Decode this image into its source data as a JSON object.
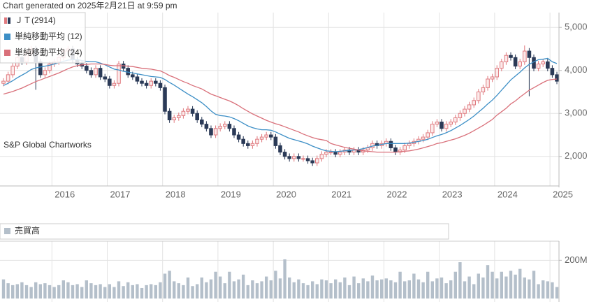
{
  "title": "Chart generated on 2025年2月21日 at 9:59 pm",
  "watermark": "S&P Global Chartworks",
  "chart_data": [
    {
      "type": "candlestick",
      "categories": [
        null,
        null,
        null,
        null,
        null,
        null,
        null,
        null,
        null,
        null,
        null,
        "2016",
        null,
        null,
        null,
        null,
        null,
        null,
        null,
        null,
        null,
        null,
        null,
        "2017",
        null,
        null,
        null,
        null,
        null,
        null,
        null,
        null,
        null,
        null,
        null,
        "2018",
        null,
        null,
        null,
        null,
        null,
        null,
        null,
        null,
        null,
        null,
        null,
        "2019",
        null,
        null,
        null,
        null,
        null,
        null,
        null,
        null,
        null,
        null,
        null,
        "2020",
        null,
        null,
        null,
        null,
        null,
        null,
        null,
        null,
        null,
        null,
        null,
        "2021",
        null,
        null,
        null,
        null,
        null,
        null,
        null,
        null,
        null,
        null,
        null,
        "2022",
        null,
        null,
        null,
        null,
        null,
        null,
        null,
        null,
        null,
        null,
        null,
        "2023",
        null,
        null,
        null,
        null,
        null,
        null,
        null,
        null,
        null,
        null,
        null,
        "2024",
        null,
        null,
        null,
        null,
        null,
        null,
        null,
        null,
        null,
        null,
        null,
        "2025",
        null
      ],
      "ylim": [
        1330,
        5280
      ],
      "yticks": [
        {
          "value": 2000,
          "label": "2,000"
        },
        {
          "value": 3000,
          "label": "3,000"
        },
        {
          "value": 4000,
          "label": "4,000"
        },
        {
          "value": 5000,
          "label": "5,000"
        }
      ],
      "grid": true,
      "series": [
        {
          "name": "ＪＴ(2914)",
          "color": "#e07a7f",
          "down_color": "#2b3a57",
          "open": [
            3700,
            3750,
            3900,
            4100,
            4300,
            4200,
            4400,
            4500,
            4200,
            3900,
            4000,
            4150,
            4200,
            4300,
            4450,
            4500,
            4250,
            4150,
            4100,
            4000,
            3900,
            4050,
            3850,
            3800,
            3650,
            3700,
            4150,
            4050,
            3900,
            3850,
            3750,
            3700,
            3650,
            3750,
            3700,
            3600,
            3050,
            2850,
            2900,
            2950,
            3050,
            3100,
            3000,
            2850,
            2750,
            2650,
            2500,
            2650,
            2700,
            2750,
            2650,
            2500,
            2400,
            2300,
            2250,
            2300,
            2400,
            2450,
            2500,
            2450,
            2250,
            2100,
            2000,
            1950,
            2000,
            1950,
            1950,
            1900,
            1850,
            1950,
            2050,
            2100,
            2100,
            2050,
            2100,
            2150,
            2100,
            2150,
            2100,
            2150,
            2200,
            2300,
            2250,
            2300,
            2350,
            2200,
            2100,
            2150,
            2250,
            2300,
            2350,
            2400,
            2450,
            2550,
            2750,
            2800,
            2650,
            2750,
            2800,
            2900,
            3000,
            3100,
            3200,
            3300,
            3500,
            3600,
            3800,
            3850,
            4050,
            4200,
            4350,
            4300,
            4100,
            4200,
            4450,
            4300,
            4050,
            4150,
            4200,
            4050,
            3900
          ],
          "high": [
            3820,
            3970,
            4170,
            4370,
            4370,
            4470,
            4570,
            4570,
            4270,
            4070,
            4220,
            4270,
            4370,
            4520,
            4570,
            4570,
            4320,
            4220,
            4170,
            4070,
            4120,
            4120,
            3920,
            3870,
            3770,
            4220,
            4220,
            4120,
            3970,
            3920,
            3820,
            3770,
            3820,
            3820,
            3770,
            3670,
            3120,
            2970,
            3020,
            3120,
            3170,
            3170,
            3070,
            2920,
            2820,
            2720,
            2720,
            2770,
            2820,
            2820,
            2720,
            2570,
            2470,
            2370,
            2370,
            2470,
            2520,
            2570,
            2570,
            2520,
            2320,
            2170,
            2070,
            2070,
            2070,
            2020,
            2020,
            1970,
            2020,
            2120,
            2170,
            2170,
            2170,
            2170,
            2220,
            2220,
            2220,
            2220,
            2220,
            2270,
            2370,
            2370,
            2370,
            2420,
            2420,
            2270,
            2220,
            2320,
            2370,
            2420,
            2470,
            2520,
            2620,
            2820,
            2870,
            2870,
            2820,
            2870,
            2970,
            3070,
            3170,
            3270,
            3370,
            3570,
            3670,
            3870,
            3920,
            4120,
            4270,
            4420,
            4420,
            4370,
            4270,
            4580,
            4520,
            4370,
            4220,
            4270,
            4270,
            4120,
            3970
          ],
          "low": [
            3630,
            3680,
            3830,
            4030,
            4130,
            4130,
            4330,
            3550,
            3830,
            3830,
            3930,
            4080,
            4130,
            4230,
            4380,
            4180,
            4080,
            4030,
            3930,
            3830,
            3830,
            3780,
            3730,
            3580,
            3580,
            3630,
            3980,
            3830,
            3780,
            3680,
            3630,
            3580,
            3580,
            3630,
            3530,
            2980,
            2780,
            2780,
            2830,
            2880,
            2980,
            2930,
            2780,
            2680,
            2580,
            2430,
            2430,
            2580,
            2630,
            2580,
            2430,
            2330,
            2230,
            2180,
            2180,
            2230,
            2330,
            2380,
            2380,
            2180,
            2030,
            1930,
            1880,
            1880,
            1880,
            1880,
            1830,
            1780,
            1780,
            1880,
            1980,
            2030,
            1980,
            1980,
            2030,
            2030,
            2030,
            2030,
            2030,
            2080,
            2130,
            2180,
            2180,
            2230,
            2130,
            2030,
            2030,
            2080,
            2180,
            2230,
            2280,
            2330,
            2380,
            2480,
            2680,
            2580,
            2580,
            2680,
            2730,
            2830,
            2930,
            3030,
            3130,
            3230,
            3430,
            3530,
            3730,
            3780,
            3980,
            4130,
            4230,
            4030,
            4030,
            4130,
            3400,
            3980,
            3980,
            4080,
            3980,
            3830,
            3680
          ],
          "close": [
            3750,
            3900,
            4100,
            4300,
            4200,
            4400,
            4500,
            4200,
            3900,
            4000,
            4150,
            4200,
            4300,
            4450,
            4500,
            4250,
            4150,
            4100,
            4000,
            3900,
            4050,
            3850,
            3800,
            3650,
            3700,
            4150,
            4050,
            3900,
            3850,
            3750,
            3700,
            3650,
            3750,
            3700,
            3600,
            3050,
            2850,
            2900,
            2950,
            3050,
            3100,
            3000,
            2850,
            2750,
            2650,
            2500,
            2650,
            2700,
            2750,
            2650,
            2500,
            2400,
            2300,
            2250,
            2300,
            2400,
            2450,
            2500,
            2450,
            2250,
            2100,
            2000,
            1950,
            2000,
            1950,
            1950,
            1900,
            1850,
            1950,
            2050,
            2100,
            2100,
            2050,
            2100,
            2150,
            2100,
            2150,
            2100,
            2150,
            2200,
            2300,
            2250,
            2300,
            2350,
            2200,
            2100,
            2150,
            2250,
            2300,
            2350,
            2400,
            2450,
            2550,
            2750,
            2800,
            2650,
            2750,
            2800,
            2900,
            3000,
            3100,
            3200,
            3300,
            3500,
            3600,
            3800,
            3850,
            4050,
            4200,
            4350,
            4300,
            4100,
            4200,
            4450,
            4300,
            4050,
            4150,
            4200,
            4050,
            3900,
            3750
          ]
        },
        {
          "name": "単純移動平均 (12)",
          "color": "#3d8fc6",
          "values": [
            3650,
            3700,
            3760,
            3830,
            3890,
            3950,
            4020,
            4060,
            4080,
            4100,
            4120,
            4150,
            4180,
            4210,
            4240,
            4250,
            4250,
            4230,
            4210,
            4200,
            4200,
            4170,
            4130,
            4080,
            4030,
            4010,
            3980,
            3960,
            3940,
            3920,
            3900,
            3880,
            3860,
            3850,
            3840,
            3790,
            3720,
            3660,
            3590,
            3520,
            3450,
            3390,
            3320,
            3250,
            3160,
            3060,
            2980,
            2950,
            2940,
            2920,
            2880,
            2830,
            2770,
            2710,
            2670,
            2640,
            2620,
            2620,
            2610,
            2570,
            2520,
            2470,
            2420,
            2390,
            2360,
            2330,
            2290,
            2240,
            2200,
            2160,
            2130,
            2120,
            2110,
            2120,
            2130,
            2140,
            2150,
            2160,
            2180,
            2210,
            2240,
            2260,
            2280,
            2300,
            2300,
            2300,
            2300,
            2300,
            2310,
            2330,
            2350,
            2370,
            2400,
            2440,
            2480,
            2510,
            2550,
            2600,
            2660,
            2720,
            2790,
            2860,
            2940,
            3030,
            3120,
            3220,
            3310,
            3420,
            3540,
            3660,
            3780,
            3870,
            3960,
            4060,
            4140,
            4200,
            4250,
            4260,
            4280,
            4200,
            4160
          ]
        },
        {
          "name": "単純移動平均 (24)",
          "color": "#d9707a",
          "values": [
            3450,
            3480,
            3510,
            3550,
            3590,
            3640,
            3690,
            3740,
            3780,
            3820,
            3860,
            3900,
            3940,
            3990,
            4040,
            4080,
            4110,
            4130,
            4140,
            4150,
            4150,
            4150,
            4140,
            4120,
            4110,
            4110,
            4110,
            4100,
            4090,
            4070,
            4050,
            4040,
            4030,
            4010,
            3990,
            3940,
            3880,
            3840,
            3790,
            3740,
            3700,
            3650,
            3610,
            3570,
            3510,
            3450,
            3410,
            3370,
            3330,
            3290,
            3240,
            3180,
            3110,
            3050,
            2990,
            2940,
            2890,
            2840,
            2800,
            2760,
            2730,
            2690,
            2650,
            2610,
            2570,
            2520,
            2480,
            2440,
            2410,
            2390,
            2370,
            2300,
            2270,
            2240,
            2210,
            2190,
            2170,
            2150,
            2130,
            2120,
            2110,
            2100,
            2100,
            2100,
            2100,
            2100,
            2110,
            2120,
            2130,
            2150,
            2170,
            2200,
            2230,
            2260,
            2300,
            2320,
            2350,
            2380,
            2410,
            2450,
            2490,
            2540,
            2600,
            2660,
            2720,
            2790,
            2860,
            2960,
            3040,
            3120,
            3220,
            3290,
            3380,
            3460,
            3540,
            3600,
            3660,
            3720,
            3770,
            3790,
            3800
          ]
        }
      ]
    },
    {
      "type": "bar",
      "series": [
        {
          "name": "売買高",
          "color": "#b4bfca",
          "values": [
            100000000,
            80000000,
            70000000,
            75000000,
            85000000,
            70000000,
            60000000,
            85000000,
            75000000,
            80000000,
            70000000,
            60000000,
            70000000,
            95000000,
            85000000,
            70000000,
            75000000,
            60000000,
            95000000,
            80000000,
            70000000,
            75000000,
            60000000,
            75000000,
            60000000,
            90000000,
            65000000,
            85000000,
            70000000,
            75000000,
            55000000,
            70000000,
            75000000,
            70000000,
            85000000,
            130000000,
            145000000,
            90000000,
            80000000,
            70000000,
            110000000,
            65000000,
            75000000,
            110000000,
            85000000,
            100000000,
            140000000,
            115000000,
            80000000,
            140000000,
            90000000,
            100000000,
            125000000,
            70000000,
            95000000,
            80000000,
            90000000,
            115000000,
            95000000,
            145000000,
            105000000,
            205000000,
            110000000,
            85000000,
            100000000,
            80000000,
            70000000,
            90000000,
            75000000,
            100000000,
            95000000,
            80000000,
            100000000,
            85000000,
            110000000,
            70000000,
            115000000,
            80000000,
            105000000,
            90000000,
            120000000,
            95000000,
            100000000,
            105000000,
            95000000,
            85000000,
            140000000,
            90000000,
            95000000,
            130000000,
            100000000,
            85000000,
            140000000,
            90000000,
            105000000,
            110000000,
            80000000,
            95000000,
            140000000,
            190000000,
            90000000,
            115000000,
            75000000,
            130000000,
            110000000,
            175000000,
            140000000,
            105000000,
            140000000,
            115000000,
            145000000,
            125000000,
            155000000,
            110000000,
            100000000,
            145000000,
            75000000,
            95000000,
            90000000,
            85000000,
            60000000
          ]
        }
      ],
      "ylim": [
        0,
        300000000
      ],
      "yticks": [
        {
          "value": 200000000,
          "label": "200M"
        }
      ],
      "grid": true
    }
  ]
}
